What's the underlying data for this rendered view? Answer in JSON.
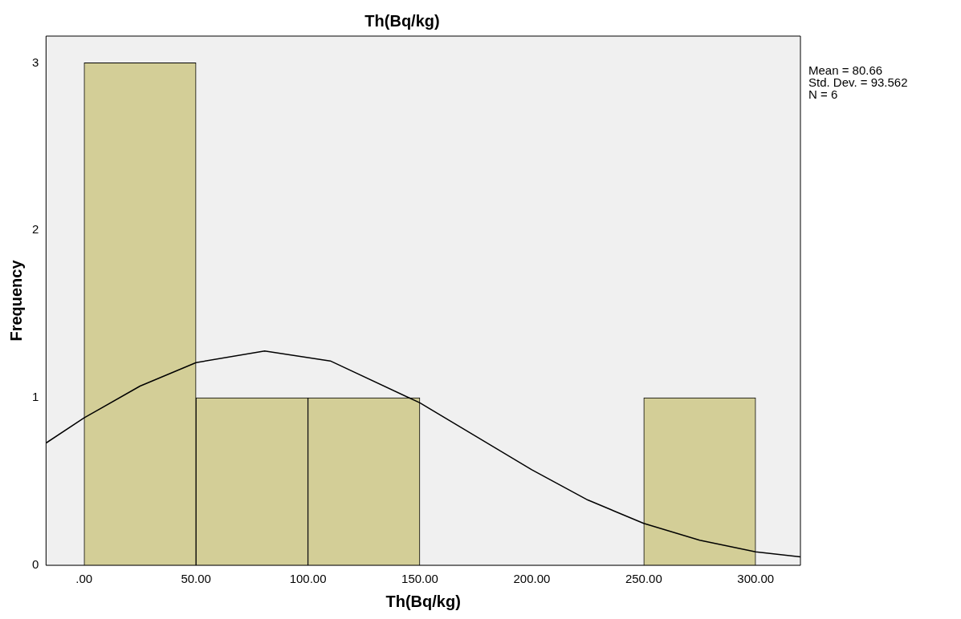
{
  "chart_data": {
    "type": "histogram",
    "title": "Th(Bq/kg)",
    "xlabel": "Th(Bq/kg)",
    "ylabel": "Frequency",
    "bins": [
      0,
      50,
      100,
      150,
      200,
      250,
      300
    ],
    "values": [
      3,
      1,
      1,
      0,
      0,
      1
    ],
    "color": "#d3ce97",
    "series": [
      {
        "type": "line",
        "color": "#000000",
        "x": [
          -17,
          0,
          25,
          50,
          80.66,
          110,
          150,
          175,
          200,
          225,
          250,
          275,
          300,
          320
        ],
        "values": [
          0.73,
          0.88,
          1.07,
          1.21,
          1.28,
          1.22,
          0.97,
          0.77,
          0.57,
          0.39,
          0.25,
          0.15,
          0.08,
          0.05
        ]
      }
    ],
    "xlim": [
      -17,
      320
    ],
    "xticks": [
      {
        "value": 0,
        "label": ".00"
      },
      {
        "value": 50,
        "label": "50.00"
      },
      {
        "value": 100,
        "label": "100.00"
      },
      {
        "value": 150,
        "label": "150.00"
      },
      {
        "value": 200,
        "label": "200.00"
      },
      {
        "value": 250,
        "label": "250.00"
      },
      {
        "value": 300,
        "label": "300.00"
      }
    ],
    "ylim": [
      0,
      3.16
    ],
    "yticks": [
      0,
      1,
      2,
      3
    ],
    "annotations": [
      "Mean = 80.66",
      "Std. Dev. = 93.562",
      "N = 6"
    ]
  }
}
